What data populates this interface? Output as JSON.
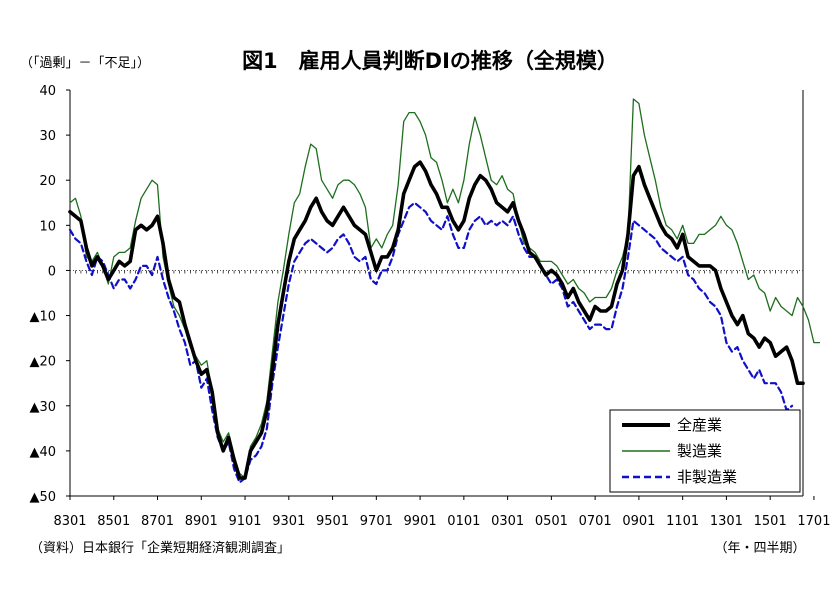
{
  "chart_data": {
    "type": "line",
    "title": "図1　雇用人員判断DIの推移（全規模）",
    "ylabel": "（「過剰」－「不足」）",
    "xlabel": "（年・四半期）",
    "source": "（資料）日本銀行「企業短期経済観測調査」",
    "ylim": [
      -50,
      40
    ],
    "ytick_values": [
      40,
      30,
      20,
      10,
      0,
      -10,
      -20,
      -30,
      -40,
      -50
    ],
    "ytick_labels": [
      "40",
      "30",
      "20",
      "10",
      "0",
      "▲10",
      "▲20",
      "▲30",
      "▲40",
      "▲50"
    ],
    "xtick_labels": [
      "8301",
      "8501",
      "8701",
      "8901",
      "9101",
      "9301",
      "9501",
      "9701",
      "9901",
      "0101",
      "0301",
      "0501",
      "0701",
      "0901",
      "1101",
      "1301",
      "1501",
      "1701"
    ],
    "grid": false,
    "zero_line": "dotted",
    "legend_position": "bottom-right",
    "legend": [
      "全産業",
      "製造業",
      "非製造業"
    ],
    "colors": {
      "all": "#000000",
      "manufacturing": "#1e6e1e",
      "nonmanufacturing": "#1010c8"
    },
    "series": [
      {
        "name": "全産業",
        "style": "thick-solid",
        "color": "#000000",
        "values": [
          13,
          12,
          11,
          5,
          1,
          3,
          1,
          -2,
          0,
          2,
          1,
          2,
          9,
          10,
          9,
          10,
          12,
          6,
          -2,
          -6,
          -7,
          -12,
          -16,
          -20,
          -23,
          -22,
          -27,
          -36,
          -40,
          -37,
          -42,
          -46,
          -46,
          -40,
          -38,
          -36,
          -31,
          -22,
          -12,
          -5,
          2,
          7,
          9,
          11,
          14,
          16,
          13,
          11,
          10,
          12,
          14,
          12,
          10,
          9,
          8,
          4,
          0,
          3,
          3,
          5,
          9,
          17,
          20,
          23,
          24,
          22,
          19,
          17,
          14,
          14,
          11,
          9,
          11,
          16,
          19,
          21,
          20,
          18,
          15,
          14,
          13,
          15,
          11,
          8,
          4,
          3,
          1,
          -1,
          0,
          -1,
          -3,
          -6,
          -4,
          -7,
          -9,
          -11,
          -8,
          -9,
          -9,
          -8,
          -3,
          0,
          8,
          21,
          23,
          19,
          16,
          13,
          10,
          8,
          7,
          5,
          8,
          3,
          2,
          1,
          1,
          1,
          0,
          -4,
          -7,
          -10,
          -12,
          -10,
          -14,
          -15,
          -17,
          -15,
          -16,
          -19,
          -18,
          -17,
          -20,
          -25,
          -25
        ]
      },
      {
        "name": "製造業",
        "style": "thin-solid",
        "color": "#1e6e1e",
        "values": [
          15,
          16,
          12,
          3,
          2,
          4,
          1,
          -3,
          3,
          4,
          4,
          5,
          11,
          16,
          18,
          20,
          19,
          3,
          -3,
          -8,
          -10,
          -13,
          -17,
          -19,
          -21,
          -20,
          -27,
          -35,
          -38,
          -36,
          -41,
          -45,
          -46,
          -39,
          -37,
          -34,
          -29,
          -18,
          -7,
          0,
          8,
          15,
          17,
          23,
          28,
          27,
          20,
          18,
          16,
          19,
          20,
          20,
          19,
          17,
          14,
          5,
          7,
          5,
          8,
          10,
          19,
          33,
          35,
          35,
          33,
          30,
          25,
          24,
          20,
          15,
          18,
          15,
          20,
          28,
          34,
          30,
          25,
          20,
          19,
          21,
          18,
          17,
          11,
          6,
          5,
          4,
          2,
          2,
          2,
          1,
          -1,
          -3,
          -2,
          -4,
          -5,
          -7,
          -6,
          -6,
          -6,
          -4,
          0,
          3,
          8,
          38,
          37,
          30,
          25,
          20,
          14,
          10,
          9,
          7,
          10,
          6,
          6,
          8,
          8,
          9,
          10,
          12,
          10,
          9,
          6,
          2,
          -2,
          -1,
          -4,
          -5,
          -9,
          -6,
          -8,
          -9,
          -10,
          -6,
          -8,
          -11,
          -16,
          -16
        ]
      },
      {
        "name": "非製造業",
        "style": "dashed",
        "color": "#1010c8",
        "values": [
          9,
          7,
          6,
          2,
          -1,
          3,
          2,
          -1,
          -4,
          -2,
          -2,
          -4,
          -2,
          1,
          1,
          -1,
          3,
          -2,
          -6,
          -9,
          -13,
          -16,
          -21,
          -20,
          -26,
          -24,
          -31,
          -37,
          -40,
          -38,
          -44,
          -47,
          -46,
          -42,
          -41,
          -39,
          -35,
          -25,
          -17,
          -10,
          -3,
          2,
          4,
          6,
          7,
          6,
          5,
          4,
          5,
          7,
          8,
          6,
          3,
          2,
          3,
          -2,
          -3,
          0,
          0,
          3,
          8,
          11,
          14,
          15,
          14,
          13,
          11,
          10,
          9,
          12,
          8,
          5,
          5,
          9,
          11,
          12,
          10,
          11,
          10,
          11,
          10,
          12,
          8,
          5,
          3,
          3,
          1,
          -1,
          -3,
          -2,
          -4,
          -8,
          -7,
          -9,
          -11,
          -13,
          -12,
          -12,
          -13,
          -13,
          -8,
          -4,
          3,
          11,
          10,
          9,
          8,
          7,
          5,
          4,
          3,
          2,
          3,
          -1,
          -2,
          -4,
          -5,
          -7,
          -8,
          -10,
          -16,
          -18,
          -17,
          -20,
          -22,
          -24,
          -22,
          -25,
          -25,
          -25,
          -27,
          -31,
          -30
        ]
      }
    ]
  }
}
